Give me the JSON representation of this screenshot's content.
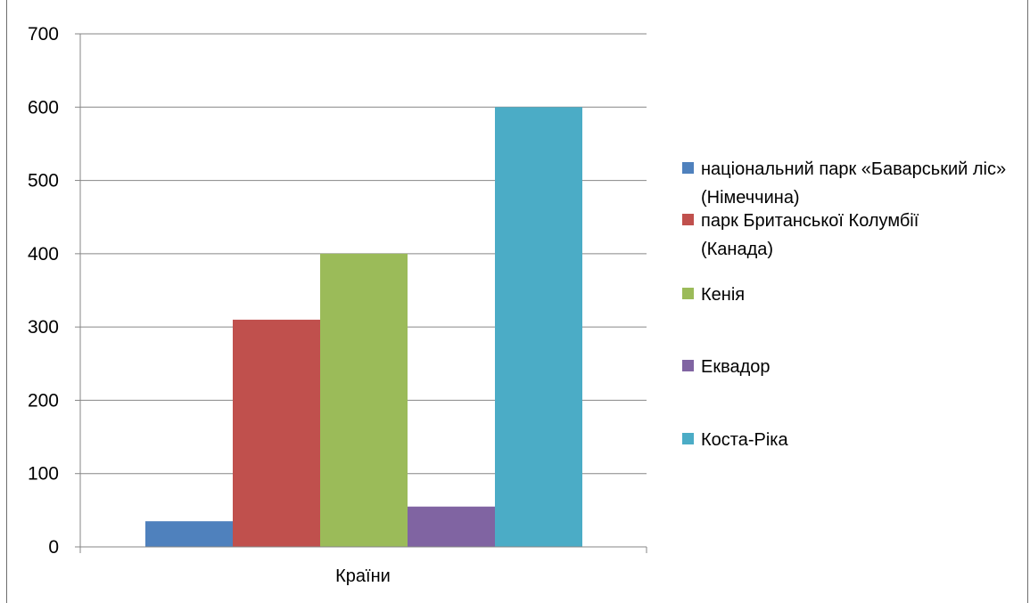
{
  "chart_data": {
    "type": "bar",
    "categories": [
      "Країни"
    ],
    "series": [
      {
        "name": "національний парк «Баварський ліс» (Німеччина)",
        "values": [
          35
        ],
        "color": "#4F81BD"
      },
      {
        "name": "парк  Британської Колумбії (Канада)",
        "values": [
          310
        ],
        "color": "#C0504D"
      },
      {
        "name": "Кенія",
        "values": [
          400
        ],
        "color": "#9BBB59"
      },
      {
        "name": "Еквадор",
        "values": [
          55
        ],
        "color": "#8064A2"
      },
      {
        "name": "Коста-Ріка",
        "values": [
          600
        ],
        "color": "#4BACC6"
      }
    ],
    "ylim": [
      0,
      700
    ],
    "yticks": [
      "0",
      "100",
      "200",
      "300",
      "400",
      "500",
      "600",
      "700"
    ],
    "grid": true,
    "legend_position": "right"
  }
}
